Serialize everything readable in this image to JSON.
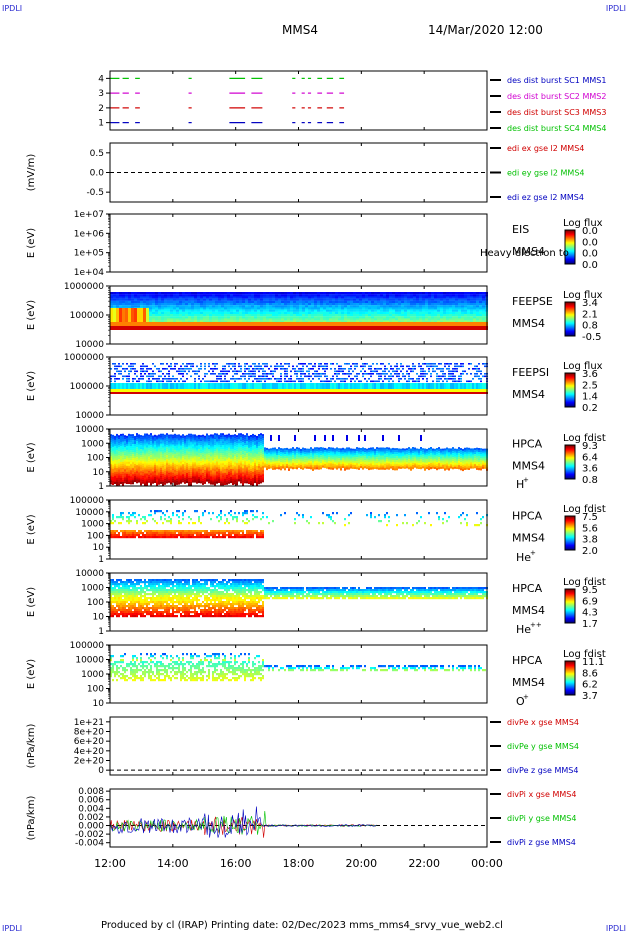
{
  "header": {
    "spacecraft": "MMS4",
    "datetime": "14/Mar/2020 12:00",
    "corner_label": "IPDLI"
  },
  "footer": {
    "text": "Produced by cl (IRAP)   Printing date: 02/Dec/2023   mms_mms4_srvy_vue_web2.cl"
  },
  "time_axis": {
    "ticks": [
      "12:00",
      "14:00",
      "16:00",
      "18:00",
      "20:00",
      "22:00",
      "00:00"
    ]
  },
  "colors": {
    "red": "#d00000",
    "green": "#00c000",
    "blue": "#0000c0",
    "magenta": "#d000d0",
    "dark_red": "#a00000"
  },
  "chart_data": [
    {
      "type": "line",
      "id": "burst",
      "ylim": [
        0.5,
        4.5
      ],
      "yticks": [
        "4",
        "3",
        "2",
        "1"
      ],
      "series": [
        {
          "name": "des dist burst SC1 MMS1",
          "level": 1,
          "color": "#0000c0"
        },
        {
          "name": "des dist burst SC2 MMS2",
          "level": 3,
          "color": "#d000d0"
        },
        {
          "name": "des dist burst SC3 MMS3",
          "level": 2,
          "color": "#d00000"
        },
        {
          "name": "des dist burst SC4 MMS4",
          "level": 4,
          "color": "#00c000"
        }
      ],
      "intervals_h": [
        [
          12.0,
          12.3
        ],
        [
          12.4,
          12.6
        ],
        [
          12.8,
          12.95
        ],
        [
          14.5,
          14.6
        ],
        [
          15.8,
          16.3
        ],
        [
          16.5,
          16.85
        ],
        [
          17.8,
          17.9
        ],
        [
          18.1,
          18.2
        ],
        [
          18.3,
          18.4
        ],
        [
          18.6,
          18.75
        ],
        [
          18.9,
          19.1
        ],
        [
          19.3,
          19.45
        ]
      ]
    },
    {
      "type": "line",
      "id": "edi",
      "ylabel": "(mV/m)",
      "ylim": [
        -0.75,
        0.75
      ],
      "yticks": [
        "0.5",
        "0.0",
        "-0.5"
      ],
      "dashed_zero": true,
      "series": [
        {
          "name": "edi ex gse l2 MMS4",
          "color": "#d00000"
        },
        {
          "name": "edi ey gse l2 MMS4",
          "color": "#00c000"
        },
        {
          "name": "edi ez gse l2 MMS4",
          "color": "#0000c0"
        }
      ]
    },
    {
      "type": "heatmap",
      "id": "eis",
      "ylabel": "E (eV)",
      "yticks": [
        "1e+07",
        "1e+06",
        "1e+05",
        "1e+04"
      ],
      "instrument": "EIS",
      "sc": "MMS4",
      "overlay_text": "Heavy electron to",
      "colorbar": {
        "title": "Log flux",
        "ticks": [
          "0.0",
          "0.0",
          "0.0",
          "0.0"
        ]
      },
      "fill": "none"
    },
    {
      "type": "heatmap",
      "id": "feepse",
      "ylabel": "E (eV)",
      "yticks": [
        "1000000",
        "100000",
        "10000"
      ],
      "instrument": "FEEPSE",
      "sc": "MMS4",
      "colorbar": {
        "title": "Log flux",
        "ticks": [
          "3.4",
          "2.1",
          "0.8",
          "-0.5"
        ]
      },
      "fill": "feepse"
    },
    {
      "type": "heatmap",
      "id": "feepsi",
      "ylabel": "E (eV)",
      "yticks": [
        "1000000",
        "100000",
        "10000"
      ],
      "instrument": "FEEPSI",
      "sc": "MMS4",
      "colorbar": {
        "title": "Log flux",
        "ticks": [
          "3.6",
          "2.5",
          "1.4",
          "0.2"
        ]
      },
      "fill": "feepsi"
    },
    {
      "type": "heatmap",
      "id": "hpca_h",
      "ylabel": "E (eV)",
      "yticks": [
        "10000",
        "1000",
        "100",
        "10",
        "1"
      ],
      "instrument": "HPCA",
      "sc": "MMS4",
      "species": "H",
      "charge": "+",
      "colorbar": {
        "title": "Log fdist",
        "ticks": [
          "9.3",
          "6.4",
          "3.6",
          "0.8"
        ]
      },
      "fill": "hpca_h"
    },
    {
      "type": "heatmap",
      "id": "hpca_he",
      "ylabel": "E (eV)",
      "yticks": [
        "100000",
        "10000",
        "1000",
        "100",
        "10",
        "1"
      ],
      "instrument": "HPCA",
      "sc": "MMS4",
      "species": "He",
      "charge": "+",
      "colorbar": {
        "title": "Log fdist",
        "ticks": [
          "7.5",
          "5.6",
          "3.8",
          "2.0"
        ]
      },
      "fill": "hpca_he"
    },
    {
      "type": "heatmap",
      "id": "hpca_he2",
      "ylabel": "E (eV)",
      "yticks": [
        "10000",
        "1000",
        "100",
        "10",
        "1"
      ],
      "instrument": "HPCA",
      "sc": "MMS4",
      "species": "He",
      "charge": "++",
      "colorbar": {
        "title": "Log fdist",
        "ticks": [
          "9.5",
          "6.9",
          "4.3",
          "1.7"
        ]
      },
      "fill": "hpca_he2"
    },
    {
      "type": "heatmap",
      "id": "hpca_o",
      "ylabel": "E (eV)",
      "yticks": [
        "100000",
        "10000",
        "1000",
        "100",
        "10"
      ],
      "instrument": "HPCA",
      "sc": "MMS4",
      "species": "O",
      "charge": "+",
      "colorbar": {
        "title": "Log fdist",
        "ticks": [
          "11.1",
          "8.6",
          "6.2",
          "3.7"
        ]
      },
      "fill": "hpca_o"
    },
    {
      "type": "line",
      "id": "divpe",
      "ylabel": "(nPa/km)",
      "ylim": [
        -1e+20,
        1.1e+21
      ],
      "yticks": [
        "1e+21",
        "8e+20",
        "6e+20",
        "4e+20",
        "2e+20",
        "0"
      ],
      "dashed_zero": true,
      "series": [
        {
          "name": "divPe x gse MMS4",
          "color": "#d00000"
        },
        {
          "name": "divPe y gse MMS4",
          "color": "#00c000"
        },
        {
          "name": "divPe z gse MMS4",
          "color": "#0000c0"
        }
      ]
    },
    {
      "type": "line",
      "id": "divpi",
      "ylabel": "(nPa/km)",
      "ylim": [
        -0.005,
        0.0085
      ],
      "yticks": [
        "0.008",
        "0.006",
        "0.004",
        "0.002",
        "0.000",
        "-0.002",
        "-0.004"
      ],
      "dashed_zero": true,
      "data_end_h": 20.5,
      "series": [
        {
          "name": "divPi x gse MMS4",
          "color": "#d00000"
        },
        {
          "name": "divPi y gse MMS4",
          "color": "#00c000"
        },
        {
          "name": "divPi z gse MMS4",
          "color": "#0000c0"
        }
      ]
    }
  ]
}
